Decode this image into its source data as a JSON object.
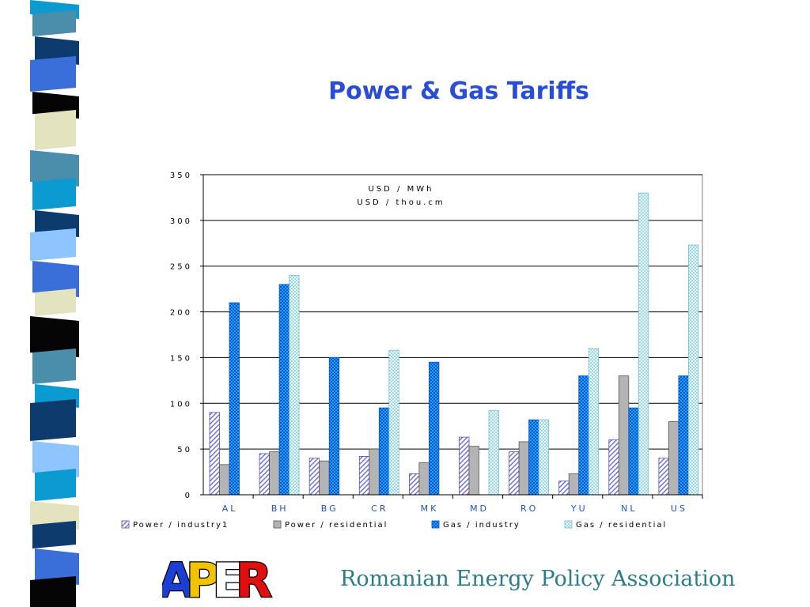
{
  "slide": {
    "title": "Power & Gas Tariffs",
    "footer": "Romanian Energy Policy Association",
    "logo_letters": [
      "A",
      "P",
      "E",
      "R"
    ],
    "logo_colors": [
      "#1b3fd2",
      "#f2c300",
      "#ffffff",
      "#e01010"
    ]
  },
  "colors": {
    "title": "#2a4dd6",
    "footer": "#2b7d86",
    "power_industry": "#6b6bd8",
    "power_residential": "#b4b4b4",
    "gas_industry": "#1aa9ef",
    "gas_residential": "#c9eef4"
  },
  "chart_data": {
    "type": "bar",
    "categories": [
      "AL",
      "BH",
      "BG",
      "CR",
      "MK",
      "MD",
      "RO",
      "YU",
      "NL",
      "US"
    ],
    "series": [
      {
        "name": "Power / industry1",
        "values": [
          90,
          45,
          40,
          42,
          23,
          63,
          47,
          15,
          60,
          40
        ]
      },
      {
        "name": "Power / residential",
        "values": [
          33,
          47,
          37,
          50,
          35,
          53,
          58,
          23,
          130,
          80
        ]
      },
      {
        "name": "Gas / industry",
        "values": [
          210,
          230,
          150,
          95,
          145,
          null,
          82,
          130,
          95,
          130
        ]
      },
      {
        "name": "Gas / residential",
        "values": [
          null,
          240,
          null,
          158,
          null,
          92,
          82,
          160,
          330,
          273
        ]
      }
    ],
    "ylim": [
      0,
      350
    ],
    "yticks": [
      "0",
      "50",
      "100",
      "150",
      "200",
      "250",
      "300",
      "350"
    ],
    "units": [
      "USD / MWh",
      "USD / thou.cm"
    ],
    "grid": true,
    "legend": "bottom"
  }
}
